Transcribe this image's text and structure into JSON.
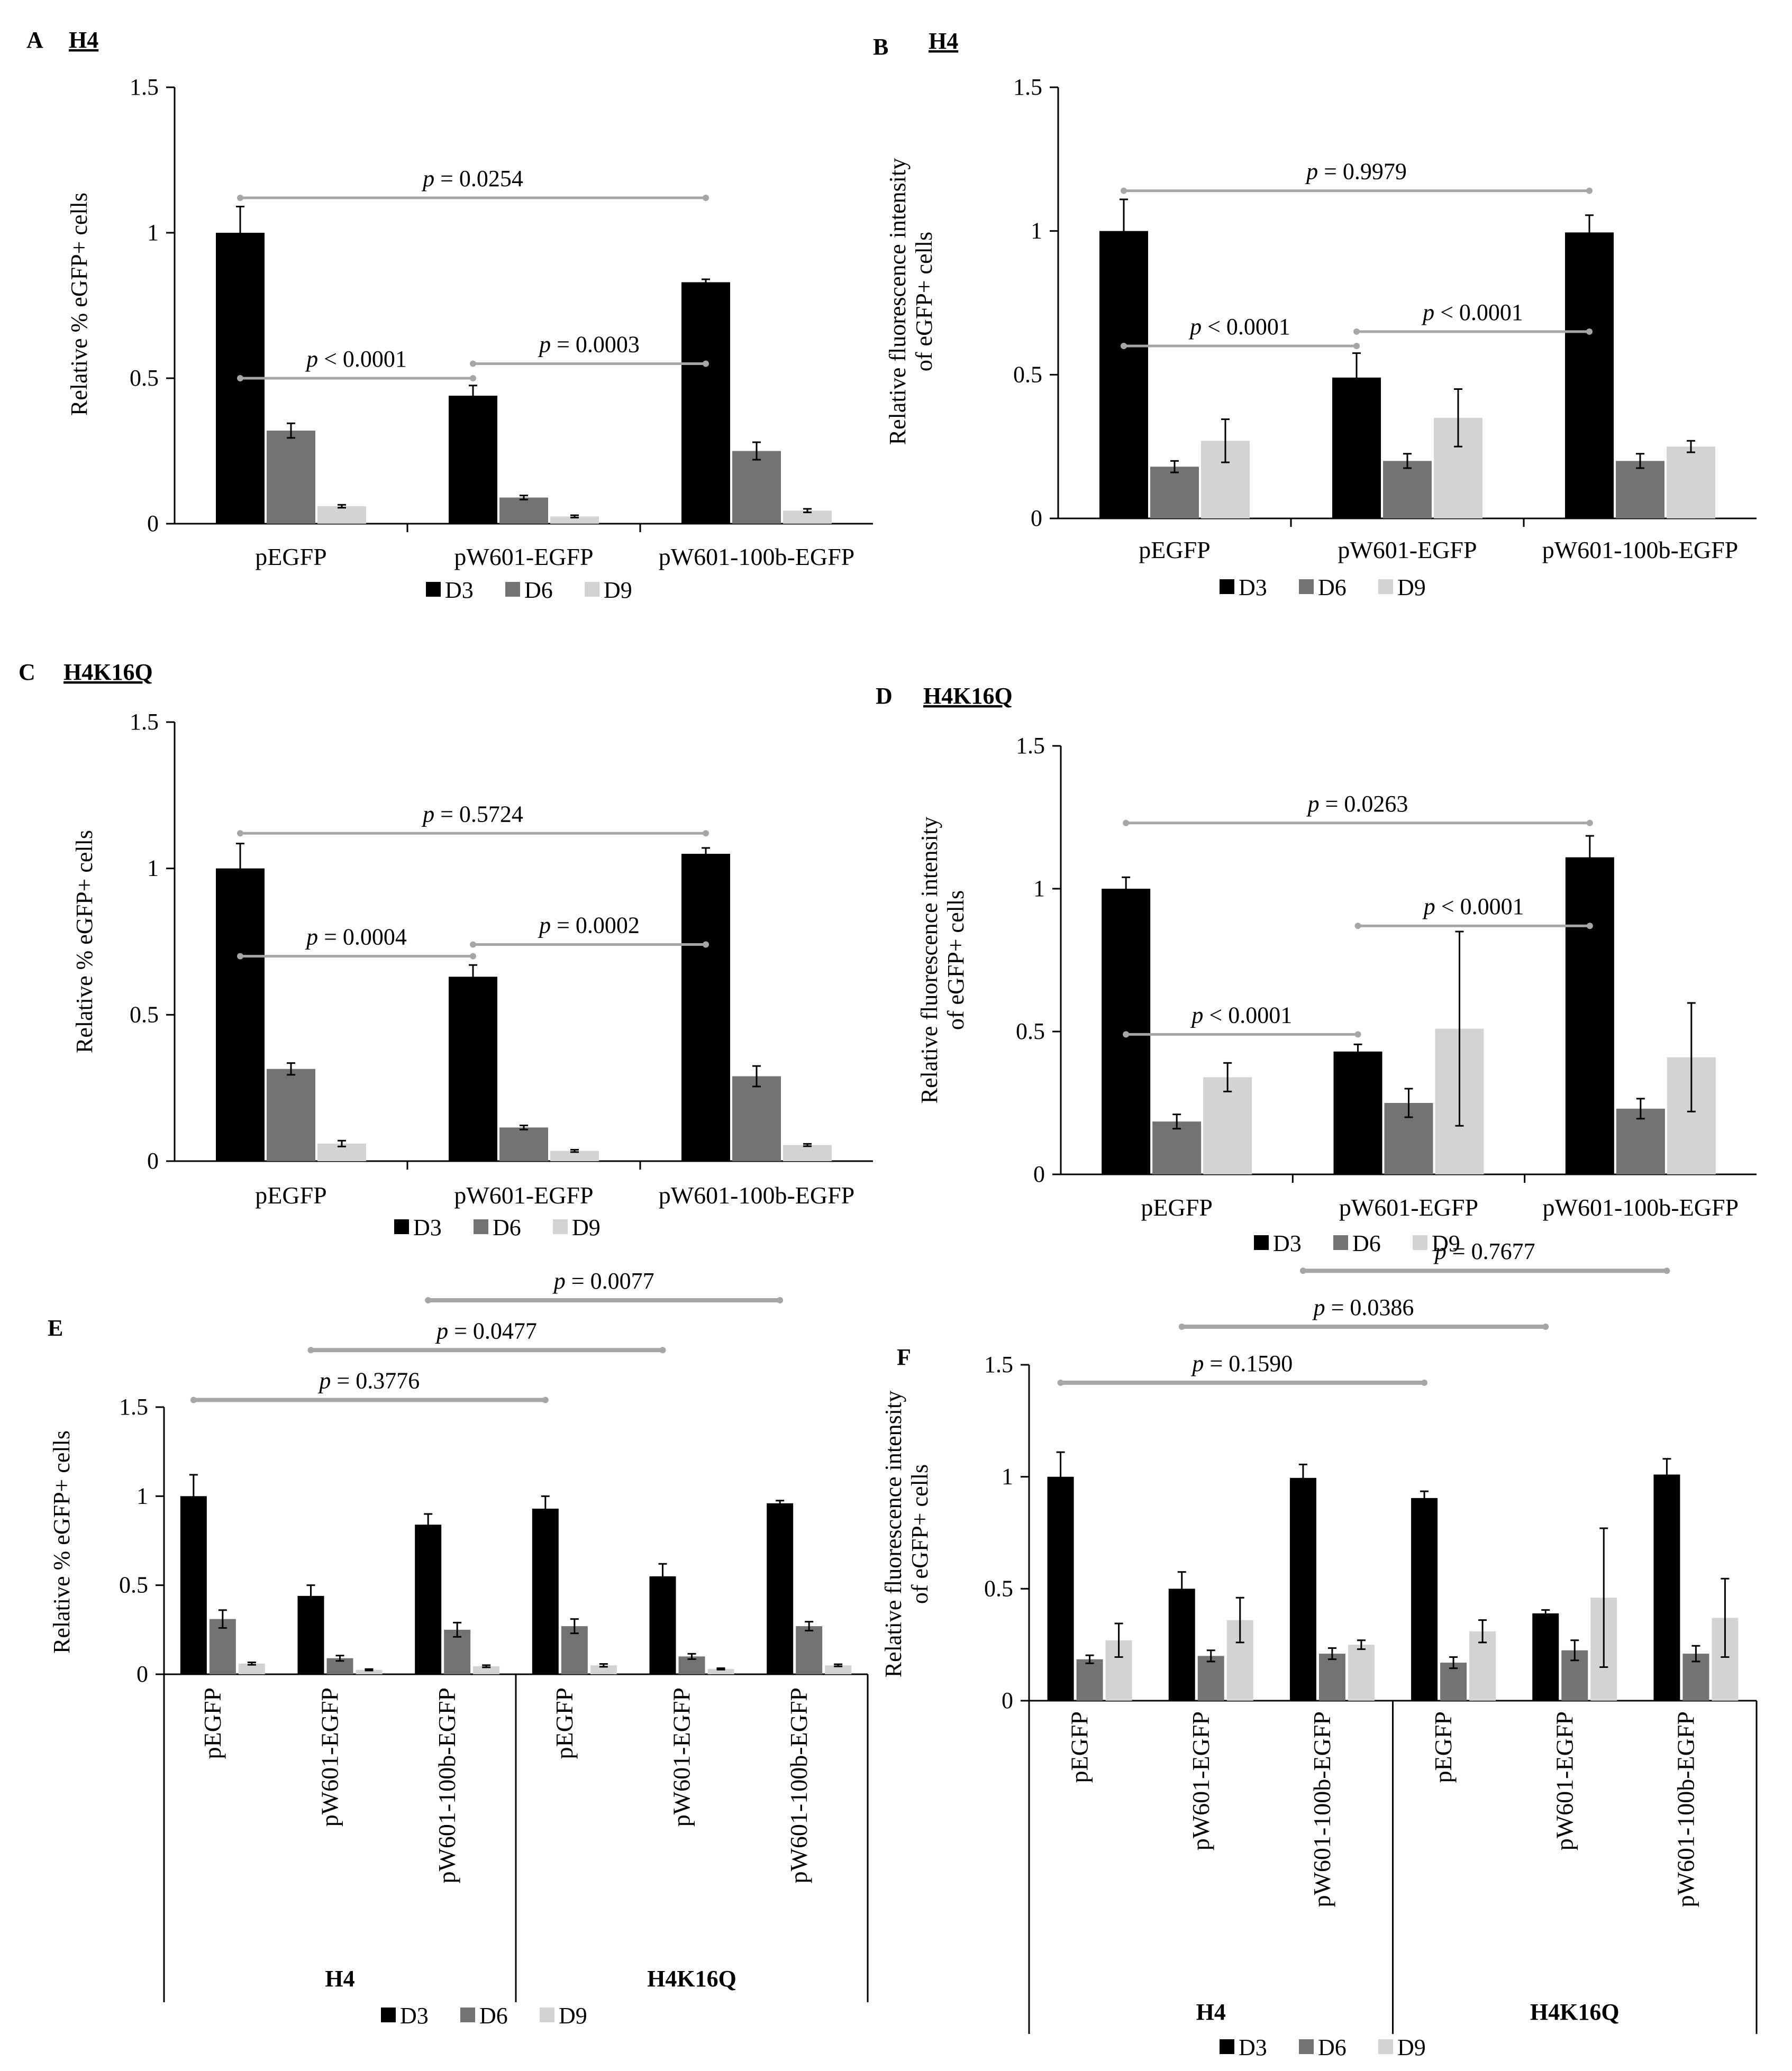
{
  "colors": {
    "D3": "#000000",
    "D6": "#737373",
    "D9": "#d3d3d3",
    "bracket": "#a6a6a6"
  },
  "chart_data": [
    {
      "id": "A",
      "panel_label": "A",
      "title": "H4",
      "type": "bar",
      "ylabel_lines": [
        "Relative % eGFP+ cells"
      ],
      "ylim": [
        0,
        1.5
      ],
      "yticks": [
        "0",
        "0.5",
        "1",
        "1.5"
      ],
      "categories": [
        "pEGFP",
        "pW601-EGFP",
        "pW601-100b-EGFP"
      ],
      "series": [
        {
          "name": "D3",
          "values": [
            1.0,
            0.44,
            0.83
          ],
          "errors": [
            0.09,
            0.035,
            0.01
          ]
        },
        {
          "name": "D6",
          "values": [
            0.32,
            0.09,
            0.25
          ],
          "errors": [
            0.025,
            0.007,
            0.03
          ]
        },
        {
          "name": "D9",
          "values": [
            0.06,
            0.025,
            0.045
          ],
          "errors": [
            0.005,
            0.004,
            0.006
          ]
        }
      ],
      "legend": [
        "D3",
        "D6",
        "D9"
      ],
      "p_values": [
        {
          "text": "= 0.0254",
          "from": 0,
          "to": 2,
          "y": 1.12
        },
        {
          "text": "< 0.0001",
          "from": 0,
          "to": 1,
          "y": 0.5
        },
        {
          "text": "= 0.0003",
          "from": 1,
          "to": 2,
          "y": 0.55
        }
      ]
    },
    {
      "id": "B",
      "panel_label": "B",
      "title": "H4",
      "type": "bar",
      "ylabel_lines": [
        "Relative fluorescence intensity",
        "of eGFP+ cells"
      ],
      "ylim": [
        0,
        1.5
      ],
      "yticks": [
        "0",
        "0.5",
        "1",
        "1.5"
      ],
      "categories": [
        "pEGFP",
        "pW601-EGFP",
        "pW601-100b-EGFP"
      ],
      "series": [
        {
          "name": "D3",
          "values": [
            1.0,
            0.49,
            0.995
          ],
          "errors": [
            0.11,
            0.085,
            0.06
          ]
        },
        {
          "name": "D6",
          "values": [
            0.18,
            0.2,
            0.2
          ],
          "errors": [
            0.02,
            0.025,
            0.025
          ]
        },
        {
          "name": "D9",
          "values": [
            0.27,
            0.35,
            0.25
          ],
          "errors": [
            0.075,
            0.1,
            0.02
          ]
        }
      ],
      "legend": [
        "D3",
        "D6",
        "D9"
      ],
      "p_values": [
        {
          "text": "= 0.9979",
          "from": 0,
          "to": 2,
          "y": 1.14
        },
        {
          "text": "< 0.0001",
          "from": 0,
          "to": 1,
          "y": 0.6
        },
        {
          "text": "< 0.0001",
          "from": 1,
          "to": 2,
          "y": 0.65
        }
      ]
    },
    {
      "id": "C",
      "panel_label": "C",
      "title": "H4K16Q",
      "type": "bar",
      "ylabel_lines": [
        "Relative % eGFP+ cells"
      ],
      "ylim": [
        0,
        1.5
      ],
      "yticks": [
        "0",
        "0.5",
        "1",
        "1.5"
      ],
      "categories": [
        "pEGFP",
        "pW601-EGFP",
        "pW601-100b-EGFP"
      ],
      "series": [
        {
          "name": "D3",
          "values": [
            1.0,
            0.63,
            1.05
          ],
          "errors": [
            0.085,
            0.04,
            0.02
          ]
        },
        {
          "name": "D6",
          "values": [
            0.315,
            0.115,
            0.29
          ],
          "errors": [
            0.02,
            0.007,
            0.035
          ]
        },
        {
          "name": "D9",
          "values": [
            0.06,
            0.035,
            0.055
          ],
          "errors": [
            0.01,
            0.004,
            0.004
          ]
        }
      ],
      "legend": [
        "D3",
        "D6",
        "D9"
      ],
      "p_values": [
        {
          "text": "= 0.5724",
          "from": 0,
          "to": 2,
          "y": 1.12
        },
        {
          "text": "= 0.0004",
          "from": 0,
          "to": 1,
          "y": 0.7
        },
        {
          "text": "= 0.0002",
          "from": 1,
          "to": 2,
          "y": 0.74
        }
      ]
    },
    {
      "id": "D",
      "panel_label": "D",
      "title": "H4K16Q",
      "type": "bar",
      "ylabel_lines": [
        "Relative fluorescence intensity",
        "of eGFP+ cells"
      ],
      "ylim": [
        0,
        1.5
      ],
      "yticks": [
        "0",
        "0.5",
        "1",
        "1.5"
      ],
      "categories": [
        "pEGFP",
        "pW601-EGFP",
        "pW601-100b-EGFP"
      ],
      "series": [
        {
          "name": "D3",
          "values": [
            1.0,
            0.43,
            1.11
          ],
          "errors": [
            0.04,
            0.025,
            0.075
          ]
        },
        {
          "name": "D6",
          "values": [
            0.185,
            0.25,
            0.23
          ],
          "errors": [
            0.025,
            0.05,
            0.035
          ]
        },
        {
          "name": "D9",
          "values": [
            0.34,
            0.51,
            0.41
          ],
          "errors": [
            0.05,
            0.34,
            0.19
          ]
        }
      ],
      "legend": [
        "D3",
        "D6",
        "D9"
      ],
      "p_values": [
        {
          "text": "= 0.0263",
          "from": 0,
          "to": 2,
          "y": 1.23
        },
        {
          "text": "< 0.0001",
          "from": 1,
          "to": 2,
          "y": 0.87
        },
        {
          "text": "< 0.0001",
          "from": 0,
          "to": 1,
          "y": 0.49
        }
      ]
    },
    {
      "id": "E",
      "panel_label": "E",
      "title": "",
      "type": "bar",
      "ylabel_lines": [
        "Relative % eGFP+ cells"
      ],
      "ylim": [
        0,
        1.5
      ],
      "yticks": [
        "0",
        "0.5",
        "1",
        "1.5"
      ],
      "categories": [
        "pEGFP",
        "pW601-EGFP",
        "pW601-100b-EGFP",
        "pEGFP",
        "pW601-EGFP",
        "pW601-100b-EGFP"
      ],
      "groups": [
        "H4",
        "H4K16Q"
      ],
      "series": [
        {
          "name": "D3",
          "values": [
            1.0,
            0.44,
            0.84,
            0.93,
            0.55,
            0.96
          ],
          "errors": [
            0.12,
            0.06,
            0.06,
            0.07,
            0.07,
            0.015
          ]
        },
        {
          "name": "D6",
          "values": [
            0.31,
            0.09,
            0.25,
            0.27,
            0.1,
            0.27
          ],
          "errors": [
            0.05,
            0.015,
            0.04,
            0.04,
            0.015,
            0.025
          ]
        },
        {
          "name": "D9",
          "values": [
            0.06,
            0.025,
            0.045,
            0.05,
            0.03,
            0.05
          ],
          "errors": [
            0.007,
            0.004,
            0.006,
            0.008,
            0.004,
            0.006
          ]
        }
      ],
      "legend": [
        "D3",
        "D6",
        "D9"
      ],
      "p_values": [
        {
          "text": "= 0.0077",
          "from": 2,
          "to": 5,
          "y": 2.1
        },
        {
          "text": "= 0.0477",
          "from": 1,
          "to": 4,
          "y": 1.82
        },
        {
          "text": "= 0.3776",
          "from": 0,
          "to": 3,
          "y": 1.54
        }
      ]
    },
    {
      "id": "F",
      "panel_label": "F",
      "title": "",
      "type": "bar",
      "ylabel_lines": [
        "Relative fluorescence intensity",
        "of eGFP+ cells"
      ],
      "ylim": [
        0,
        1.5
      ],
      "yticks": [
        "0",
        "0.5",
        "1",
        "1.5"
      ],
      "categories": [
        "pEGFP",
        "pW601-EGFP",
        "pW601-100b-EGFP",
        "pEGFP",
        "pW601-EGFP",
        "pW601-100b-EGFP"
      ],
      "groups": [
        "H4",
        "H4K16Q"
      ],
      "series": [
        {
          "name": "D3",
          "values": [
            1.0,
            0.5,
            0.995,
            0.905,
            0.39,
            1.01
          ],
          "errors": [
            0.11,
            0.075,
            0.06,
            0.03,
            0.015,
            0.07
          ]
        },
        {
          "name": "D6",
          "values": [
            0.185,
            0.2,
            0.21,
            0.17,
            0.225,
            0.21
          ],
          "errors": [
            0.018,
            0.025,
            0.025,
            0.025,
            0.045,
            0.035
          ]
        },
        {
          "name": "D9",
          "values": [
            0.27,
            0.36,
            0.25,
            0.31,
            0.46,
            0.37
          ],
          "errors": [
            0.075,
            0.1,
            0.02,
            0.05,
            0.31,
            0.175
          ]
        }
      ],
      "legend": [
        "D3",
        "D6",
        "D9"
      ],
      "p_values": [
        {
          "text": "= 0.7677",
          "from": 2,
          "to": 5,
          "y": 1.92
        },
        {
          "text": "= 0.0386",
          "from": 1,
          "to": 4,
          "y": 1.67
        },
        {
          "text": "= 0.1590",
          "from": 0,
          "to": 3,
          "y": 1.42
        }
      ]
    }
  ]
}
